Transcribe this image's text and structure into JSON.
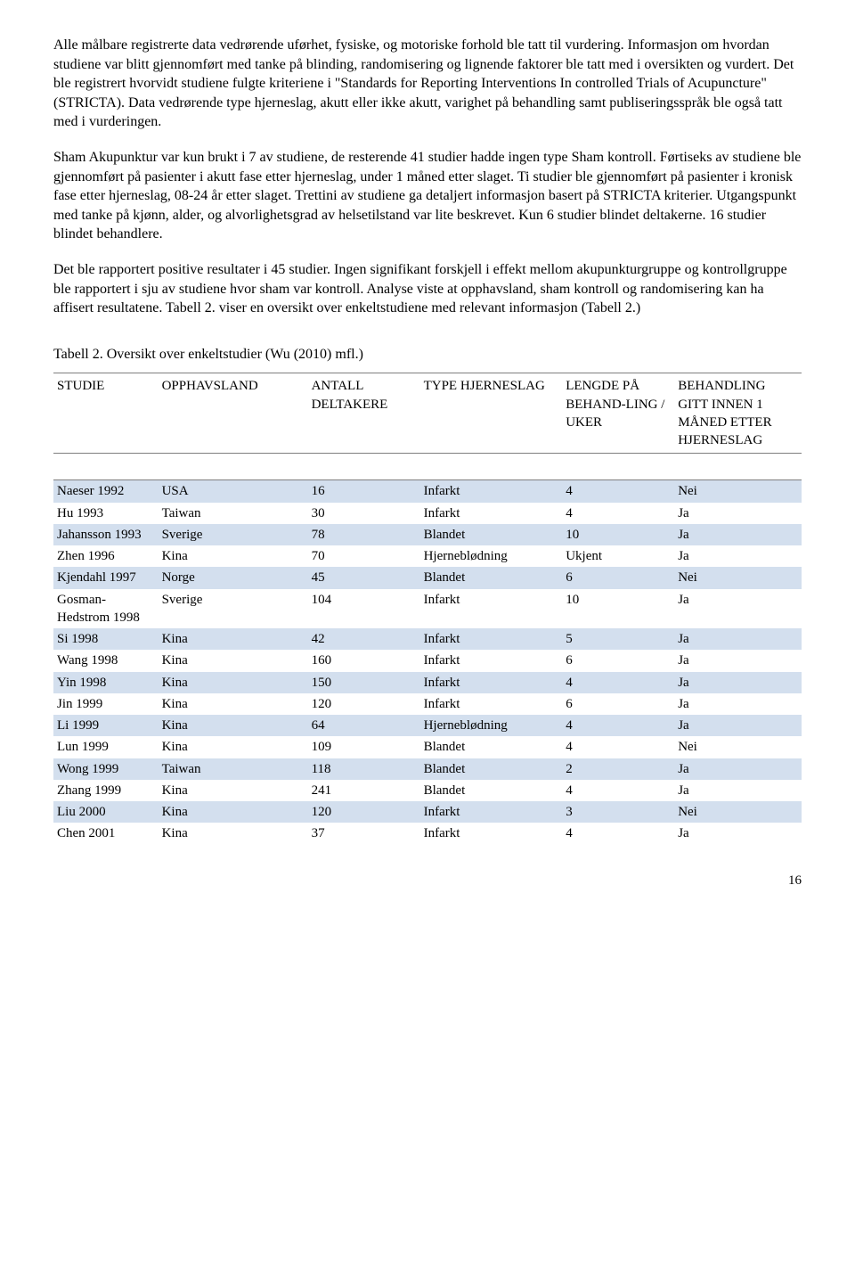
{
  "paragraphs": {
    "p1": "Alle målbare registrerte data vedrørende uførhet, fysiske, og motoriske forhold ble tatt til vurdering. Informasjon om hvordan studiene var blitt gjennomført med tanke på blinding, randomisering og lignende faktorer ble tatt med i oversikten og vurdert. Det ble registrert hvorvidt studiene fulgte kriteriene i \"Standards for Reporting Interventions In controlled Trials of Acupuncture\" (STRICTA). Data vedrørende type hjerneslag, akutt eller ikke akutt, varighet på behandling samt publiseringsspråk ble også tatt med i vurderingen.",
    "p2": "Sham Akupunktur var kun brukt i 7 av studiene, de resterende 41 studier hadde ingen type Sham kontroll. Førtiseks av studiene ble gjennomført på pasienter i akutt fase etter hjerneslag, under 1 måned etter slaget. Ti studier ble gjennomført på pasienter i kronisk fase etter hjerneslag, 08-24 år etter slaget. Trettini av studiene ga detaljert informasjon basert på STRICTA kriterier. Utgangspunkt med tanke på kjønn, alder, og alvorlighetsgrad av helsetilstand var lite beskrevet. Kun 6 studier blindet deltakerne. 16 studier blindet behandlere.",
    "p3": "Det ble rapportert positive resultater i 45 studier. Ingen signifikant forskjell i effekt mellom akupunkturgruppe og kontrollgruppe ble rapportert i sju av studiene hvor sham var kontroll. Analyse viste at opphavsland, sham kontroll og randomisering kan ha affisert resultatene. Tabell 2. viser en oversikt over enkeltstudiene med relevant informasjon (Tabell 2.)"
  },
  "table_caption": "Tabell 2. Oversikt over enkeltstudier (Wu (2010) mfl.)",
  "table": {
    "columns": [
      "STUDIE",
      "OPPHAVSLAND",
      "ANTALL DELTAKERE",
      "TYPE HJERNESLAG",
      "LENGDE PÅ BEHAND-LING / UKER",
      "BEHANDLING GITT INNEN 1 MÅNED ETTER HJERNESLAG"
    ],
    "rows": [
      [
        "Naeser 1992",
        "USA",
        "16",
        "Infarkt",
        "4",
        "Nei"
      ],
      [
        "Hu 1993",
        "Taiwan",
        "30",
        "Infarkt",
        "4",
        "Ja"
      ],
      [
        "Jahansson 1993",
        "Sverige",
        "78",
        "Blandet",
        "10",
        "Ja"
      ],
      [
        "Zhen 1996",
        "Kina",
        "70",
        "Hjerneblødning",
        "Ukjent",
        "Ja"
      ],
      [
        "Kjendahl 1997",
        "Norge",
        "45",
        "Blandet",
        "6",
        "Nei"
      ],
      [
        "Gosman-Hedstrom 1998",
        "Sverige",
        "104",
        "Infarkt",
        "10",
        "Ja"
      ],
      [
        "Si 1998",
        "Kina",
        "42",
        "Infarkt",
        "5",
        "Ja"
      ],
      [
        "Wang 1998",
        "Kina",
        "160",
        "Infarkt",
        "6",
        "Ja"
      ],
      [
        "Yin 1998",
        "Kina",
        "150",
        "Infarkt",
        "4",
        "Ja"
      ],
      [
        "Jin 1999",
        "Kina",
        "120",
        "Infarkt",
        "6",
        "Ja"
      ],
      [
        "Li 1999",
        "Kina",
        "64",
        "Hjerneblødning",
        "4",
        "Ja"
      ],
      [
        "Lun 1999",
        "Kina",
        "109",
        "Blandet",
        "4",
        "Nei"
      ],
      [
        "Wong 1999",
        "Taiwan",
        "118",
        "Blandet",
        "2",
        "Ja"
      ],
      [
        "Zhang 1999",
        "Kina",
        "241",
        "Blandet",
        "4",
        "Ja"
      ],
      [
        "Liu 2000",
        "Kina",
        "120",
        "Infarkt",
        "3",
        "Nei"
      ],
      [
        "Chen 2001",
        "Kina",
        "37",
        "Infarkt",
        "4",
        "Ja"
      ]
    ],
    "shaded_color": "#d3dfee",
    "border_color": "#7f7f7f",
    "font_size": 15
  },
  "page_number": "16"
}
